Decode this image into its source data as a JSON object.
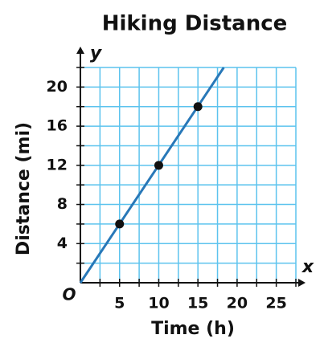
{
  "chart_data": {
    "type": "line",
    "title": "Hiking Distance",
    "xlabel": "Time (h)",
    "ylabel": "Distance (mi)",
    "x_axis_letter": "x",
    "y_axis_letter": "y",
    "origin_label": "O",
    "xlim": [
      0,
      27.5
    ],
    "ylim": [
      0,
      22
    ],
    "xticks": [
      5,
      10,
      15,
      20,
      25
    ],
    "yticks": [
      4,
      8,
      12,
      16,
      20
    ],
    "xgrid": [
      2.5,
      5,
      7.5,
      10,
      12.5,
      15,
      17.5,
      20,
      22.5,
      25,
      27.5
    ],
    "ygrid": [
      2,
      4,
      6,
      8,
      10,
      12,
      14,
      16,
      18,
      20,
      22
    ],
    "grid": true,
    "grid_color": "#5cc3ee",
    "series": [
      {
        "color": "#2878b8",
        "x": [
          0,
          18.3
        ],
        "values": [
          0,
          22
        ],
        "marker": false
      },
      {
        "color": "#111111",
        "x": [
          5,
          10,
          15
        ],
        "values": [
          6,
          12,
          18
        ],
        "marker": true,
        "line": false
      }
    ]
  }
}
